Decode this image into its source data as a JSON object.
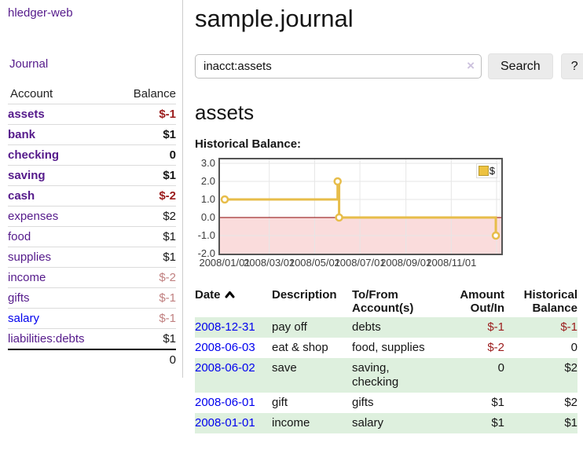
{
  "sidebar": {
    "app_title": "hledger-web",
    "nav": {
      "journal": "Journal"
    },
    "accounts": {
      "header": {
        "account": "Account",
        "balance": "Balance"
      },
      "rows": [
        {
          "name": "assets",
          "depth": 1,
          "bold": true,
          "link": "purple",
          "balance": "$-1",
          "balance_color": "neg"
        },
        {
          "name": "bank",
          "depth": 2,
          "bold": true,
          "link": "purple",
          "balance": "$1",
          "balance_color": "normal"
        },
        {
          "name": "checking",
          "depth": 3,
          "bold": true,
          "link": "purple",
          "balance": "0",
          "balance_color": "normal"
        },
        {
          "name": "saving",
          "depth": 3,
          "bold": true,
          "link": "purple",
          "balance": "$1",
          "balance_color": "normal"
        },
        {
          "name": "cash",
          "depth": 2,
          "bold": true,
          "link": "purple",
          "balance": "$-2",
          "balance_color": "neg"
        },
        {
          "name": "expenses",
          "depth": 1,
          "bold": false,
          "link": "purple",
          "balance": "$2",
          "balance_color": "normal"
        },
        {
          "name": "food",
          "depth": 2,
          "bold": false,
          "link": "purple",
          "balance": "$1",
          "balance_color": "normal"
        },
        {
          "name": "supplies",
          "depth": 2,
          "bold": false,
          "link": "purple",
          "balance": "$1",
          "balance_color": "normal"
        },
        {
          "name": "income",
          "depth": 1,
          "bold": false,
          "link": "purple",
          "balance": "$-2",
          "balance_color": "neg-faded"
        },
        {
          "name": "gifts",
          "depth": 2,
          "bold": false,
          "link": "purple",
          "balance": "$-1",
          "balance_color": "neg-faded"
        },
        {
          "name": "salary",
          "depth": 2,
          "bold": false,
          "link": "blue",
          "balance": "$-1",
          "balance_color": "neg-faded"
        },
        {
          "name": "liabilities:debts",
          "depth": 1,
          "bold": false,
          "link": "purple",
          "balance": "$1",
          "balance_color": "normal"
        }
      ],
      "total": "0"
    }
  },
  "main": {
    "page_title": "sample.journal",
    "search": {
      "value": "inacct:assets",
      "clear_label": "×",
      "button_label": "Search",
      "help_label": "?"
    },
    "section_title": "assets",
    "chart_label": "Historical Balance:"
  },
  "chart_data": {
    "type": "line",
    "style": "step",
    "title": "Historical Balance:",
    "series": [
      {
        "name": "$",
        "color": "#E7BD4A",
        "points": [
          [
            "2008-01-01",
            1
          ],
          [
            "2008-06-01",
            2
          ],
          [
            "2008-06-03",
            0
          ],
          [
            "2008-12-31",
            -1
          ]
        ]
      }
    ],
    "ylim": [
      -2,
      3
    ],
    "yticks": [
      "3.0",
      "2.0",
      "1.0",
      "0.0",
      "-1.0",
      "-2.0"
    ],
    "xlim": [
      "2008-01-01",
      "2009-01-01"
    ],
    "xticks": [
      {
        "date": "2008-01-01",
        "label": "2008/01/01",
        "gridline": false
      },
      {
        "date": "2008-03-01",
        "label": "2008/03/01",
        "gridline": true
      },
      {
        "date": "2008-05-01",
        "label": "2008/05/01",
        "gridline": true
      },
      {
        "date": "2008-07-01",
        "label": "2008/07/01",
        "gridline": true
      },
      {
        "date": "2008-09-01",
        "label": "2008/09/01",
        "gridline": true
      },
      {
        "date": "2008-11-01",
        "label": "2008/11/01",
        "gridline": true
      },
      {
        "date": "2009-01-01",
        "label": "",
        "gridline": true
      }
    ],
    "grid": true,
    "grid_color": "#E6E6E6",
    "zero_line_color": "#8B0000",
    "negative_fill": "#FADCDC",
    "legend": {
      "position": "top-right",
      "label": "$",
      "swatch_color": "#EDC240"
    }
  },
  "register": {
    "headers": {
      "date": "Date",
      "description": "Description",
      "accounts": "To/From Account(s)",
      "amount": "Amount Out/In",
      "balance": "Historical Balance"
    },
    "rows": [
      {
        "date": "2008-12-31",
        "description": "pay off",
        "accounts": "debts",
        "amount": "$-1",
        "amount_color": "neg",
        "balance": "$-1",
        "balance_color": "neg",
        "shaded": true
      },
      {
        "date": "2008-06-03",
        "description": "eat & shop",
        "accounts": "food, supplies",
        "amount": "$-2",
        "amount_color": "neg",
        "balance": "0",
        "balance_color": "normal",
        "shaded": false
      },
      {
        "date": "2008-06-02",
        "description": "save",
        "accounts": "saving, checking",
        "amount": "0",
        "amount_color": "normal",
        "balance": "$2",
        "balance_color": "normal",
        "shaded": true
      },
      {
        "date": "2008-06-01",
        "description": "gift",
        "accounts": "gifts",
        "amount": "$1",
        "amount_color": "normal",
        "balance": "$2",
        "balance_color": "normal",
        "shaded": false
      },
      {
        "date": "2008-01-01",
        "description": "income",
        "accounts": "salary",
        "amount": "$1",
        "amount_color": "normal",
        "balance": "$1",
        "balance_color": "normal",
        "shaded": true
      }
    ]
  }
}
